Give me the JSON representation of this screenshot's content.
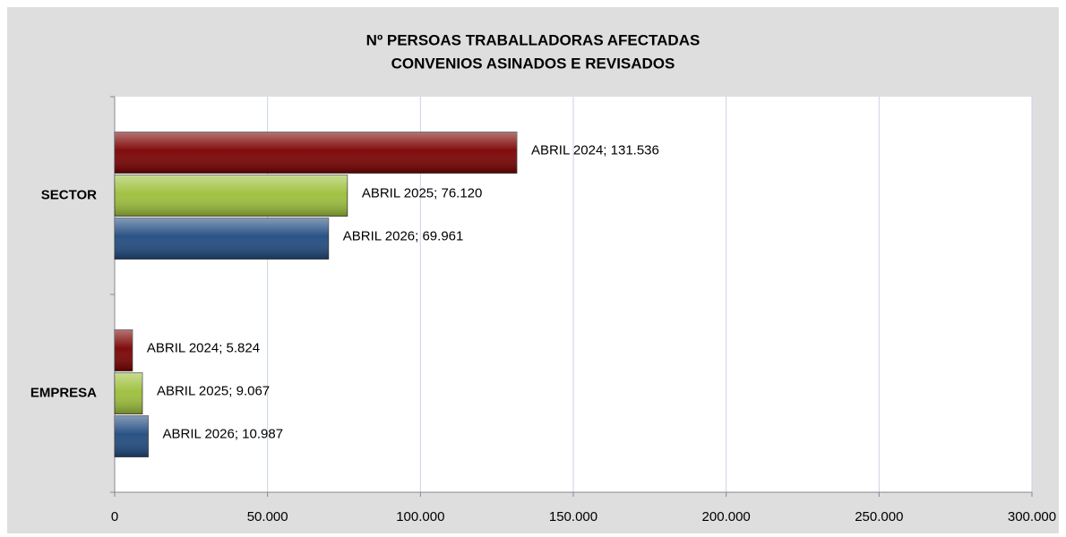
{
  "chart_data": {
    "type": "bar",
    "orientation": "horizontal",
    "title": [
      "Nº PERSOAS TRABALLADORAS AFECTADAS",
      "CONVENIOS ASINADOS E REVISADOS"
    ],
    "categories": [
      "SECTOR",
      "EMPRESA"
    ],
    "series": [
      {
        "name": "ABRIL 2024",
        "color": "#7a0000",
        "values": [
          131536,
          5824
        ],
        "value_labels": [
          "ABRIL 2024; 131.536",
          "ABRIL 2024; 5.824"
        ]
      },
      {
        "name": "ABRIL 2025",
        "color": "#9cbf3a",
        "values": [
          76120,
          9067
        ],
        "value_labels": [
          "ABRIL 2025; 76.120",
          "ABRIL 2025; 9.067"
        ]
      },
      {
        "name": "ABRIL 2026",
        "color": "#1f4a7f",
        "values": [
          69961,
          10987
        ],
        "value_labels": [
          "ABRIL 2026; 69.961",
          "ABRIL 2026; 10.987"
        ]
      }
    ],
    "xlim": [
      0,
      300000
    ],
    "xticks": [
      0,
      {
        "value": 50000,
        "label": "50.000"
      },
      {
        "value": 100000,
        "label": "100.000"
      },
      {
        "value": 150000,
        "label": "150.000"
      },
      {
        "value": 200000,
        "label": "200.000"
      },
      {
        "value": 250000,
        "label": "250.000"
      },
      {
        "value": 300000,
        "label": "300.000"
      }
    ],
    "grid": true
  }
}
